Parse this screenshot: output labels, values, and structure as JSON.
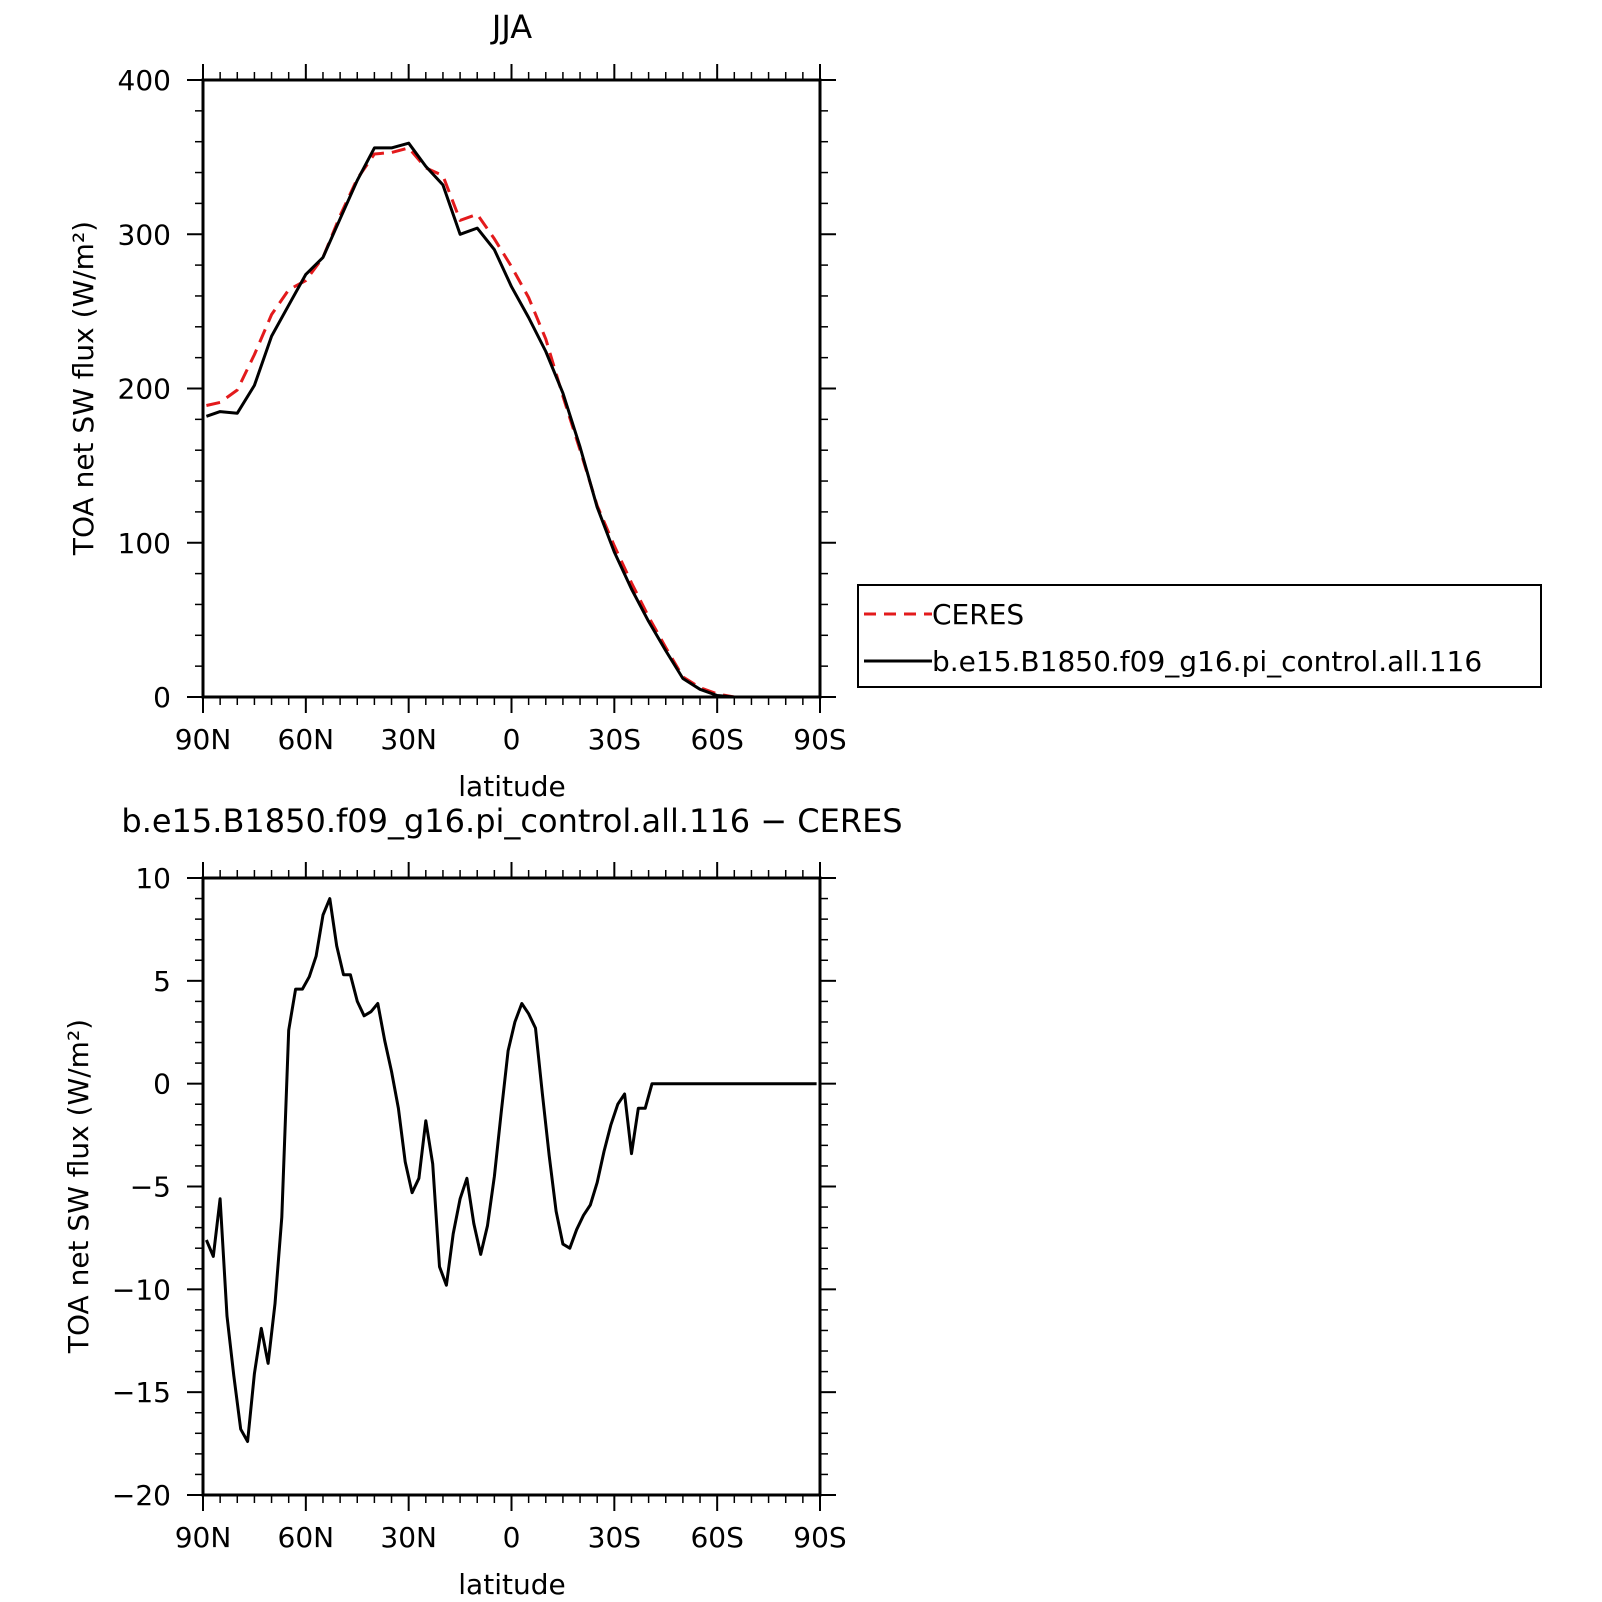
{
  "chart_data": [
    {
      "type": "line",
      "title": "JJA",
      "xlabel": "latitude",
      "ylabel": "TOA net SW flux (W/m²)",
      "xlim": [
        90,
        -90
      ],
      "ylim": [
        0,
        400
      ],
      "x_ticks": [
        {
          "value": 90,
          "label": "90N"
        },
        {
          "value": 60,
          "label": "60N"
        },
        {
          "value": 30,
          "label": "30N"
        },
        {
          "value": 0,
          "label": "0"
        },
        {
          "value": -30,
          "label": "30S"
        },
        {
          "value": -60,
          "label": "60S"
        },
        {
          "value": -90,
          "label": "90S"
        }
      ],
      "y_ticks": [
        {
          "value": 0,
          "label": "0"
        },
        {
          "value": 100,
          "label": "100"
        },
        {
          "value": 200,
          "label": "200"
        },
        {
          "value": 300,
          "label": "300"
        },
        {
          "value": 400,
          "label": "400"
        }
      ],
      "legend": {
        "placement": "right",
        "entries": [
          {
            "label": "CERES",
            "color": "#e31a1c",
            "dash": "dashed"
          },
          {
            "label": "b.e15.B1850.f09_g16.pi_control.all.116",
            "color": "#000000",
            "dash": "solid"
          }
        ]
      },
      "series": [
        {
          "name": "CERES",
          "color": "#e31a1c",
          "dash": "dashed",
          "x": [
            89,
            85,
            80,
            75,
            70,
            65,
            60,
            55,
            50,
            45,
            40,
            35,
            30,
            25,
            20,
            15,
            10,
            5,
            0,
            -5,
            -10,
            -15,
            -20,
            -25,
            -30,
            -35,
            -40,
            -45,
            -50,
            -55,
            -60,
            -65,
            -70,
            -75,
            -80,
            -85,
            -89
          ],
          "values": [
            189,
            191,
            199,
            222,
            248,
            264,
            270,
            285,
            312,
            336,
            352,
            353,
            356,
            343,
            338,
            309,
            313,
            297,
            279,
            259,
            232,
            195,
            160,
            124,
            98,
            74,
            52,
            32,
            13,
            6,
            2,
            0,
            0,
            0,
            0,
            0,
            0
          ]
        },
        {
          "name": "b.e15.B1850.f09_g16.pi_control.all.116",
          "color": "#000000",
          "dash": "solid",
          "x": [
            89,
            85,
            80,
            75,
            70,
            65,
            60,
            55,
            50,
            45,
            40,
            35,
            30,
            25,
            20,
            15,
            10,
            5,
            0,
            -5,
            -10,
            -15,
            -20,
            -25,
            -30,
            -35,
            -40,
            -45,
            -50,
            -55,
            -60,
            -65,
            -70,
            -75,
            -80,
            -85,
            -89
          ],
          "values": [
            182,
            185,
            184,
            202,
            234,
            254,
            274,
            285,
            310,
            335,
            356,
            356,
            359,
            344,
            332,
            300,
            304,
            290,
            266,
            246,
            224,
            197,
            162,
            123,
            94,
            70,
            49,
            30,
            12,
            5,
            1,
            0,
            0,
            0,
            0,
            0,
            0
          ]
        }
      ]
    },
    {
      "type": "line",
      "title": "b.e15.B1850.f09_g16.pi_control.all.116 − CERES",
      "xlabel": "latitude",
      "ylabel": "TOA net SW flux (W/m²)",
      "xlim": [
        90,
        -90
      ],
      "ylim": [
        -20,
        10
      ],
      "x_ticks": [
        {
          "value": 90,
          "label": "90N"
        },
        {
          "value": 60,
          "label": "60N"
        },
        {
          "value": 30,
          "label": "30N"
        },
        {
          "value": 0,
          "label": "0"
        },
        {
          "value": -30,
          "label": "30S"
        },
        {
          "value": -60,
          "label": "60S"
        },
        {
          "value": -90,
          "label": "90S"
        }
      ],
      "y_ticks": [
        {
          "value": -20,
          "label": "−20"
        },
        {
          "value": -15,
          "label": "−15"
        },
        {
          "value": -10,
          "label": "−10"
        },
        {
          "value": -5,
          "label": "−5"
        },
        {
          "value": 0,
          "label": "0"
        },
        {
          "value": 5,
          "label": "5"
        },
        {
          "value": 10,
          "label": "10"
        }
      ],
      "series": [
        {
          "color": "#000000",
          "dash": "solid",
          "x": [
            89,
            87,
            85,
            83,
            81,
            79,
            77,
            75,
            73,
            71,
            69,
            67,
            65,
            63,
            61,
            59,
            57,
            55,
            53,
            51,
            49,
            47,
            45,
            43,
            41,
            39,
            37,
            35,
            33,
            31,
            29,
            27,
            25,
            23,
            21,
            19,
            17,
            15,
            13,
            11,
            9,
            7,
            5,
            3,
            1,
            -1,
            -3,
            -5,
            -7,
            -9,
            -11,
            -13,
            -15,
            -17,
            -19,
            -21,
            -23,
            -25,
            -27,
            -29,
            -31,
            -33,
            -35,
            -37,
            -39,
            -41,
            -43,
            -45,
            -47,
            -49,
            -51,
            -53,
            -55,
            -57,
            -59,
            -61,
            -63,
            -65,
            -67,
            -69,
            -71,
            -73,
            -75,
            -77,
            -79,
            -81,
            -83,
            -85,
            -87,
            -89
          ],
          "values": [
            -7.6,
            -8.4,
            -5.6,
            -11.3,
            -14.2,
            -16.8,
            -17.4,
            -14.1,
            -11.9,
            -13.6,
            -10.7,
            -6.5,
            2.6,
            4.6,
            4.6,
            5.2,
            6.2,
            8.2,
            9.0,
            6.7,
            5.3,
            5.3,
            4.0,
            3.3,
            3.5,
            3.9,
            2.1,
            0.6,
            -1.2,
            -3.8,
            -5.3,
            -4.6,
            -1.8,
            -3.9,
            -8.9,
            -9.8,
            -7.3,
            -5.6,
            -4.6,
            -6.8,
            -8.3,
            -6.9,
            -4.5,
            -1.4,
            1.6,
            3.0,
            3.9,
            3.4,
            2.7,
            -0.5,
            -3.5,
            -6.2,
            -7.8,
            -8.0,
            -7.1,
            -6.4,
            -5.9,
            -4.8,
            -3.3,
            -2.0,
            -1.0,
            -0.5,
            -3.4,
            -1.2,
            -1.2,
            0.0,
            0.0,
            0.0,
            0.0,
            0.0,
            0.0,
            0.0,
            0.0,
            0.0,
            0.0,
            0.0,
            0.0,
            0.0,
            0.0,
            0.0,
            0.0,
            0.0,
            0.0,
            0.0,
            0.0,
            0.0,
            0.0,
            0.0,
            0.0,
            0.0
          ]
        }
      ]
    }
  ]
}
